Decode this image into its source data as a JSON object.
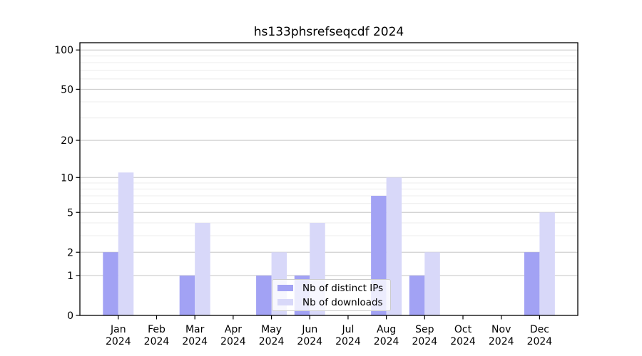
{
  "figure": {
    "title": "hs133phsrefseqcdf 2024"
  },
  "chart_data": {
    "type": "bar",
    "title": "hs133phsrefseqcdf 2024",
    "categories": [
      "Jan 2024",
      "Feb 2024",
      "Mar 2024",
      "Apr 2024",
      "May 2024",
      "Jun 2024",
      "Jul 2024",
      "Aug 2024",
      "Sep 2024",
      "Oct 2024",
      "Nov 2024",
      "Dec 2024"
    ],
    "month_labels": [
      "Jan",
      "Feb",
      "Mar",
      "Apr",
      "May",
      "Jun",
      "Jul",
      "Aug",
      "Sep",
      "Oct",
      "Nov",
      "Dec"
    ],
    "year_label": "2024",
    "series": [
      {
        "name": "Nb of distinct IPs",
        "color": "#a2a2f4",
        "values": [
          2,
          0,
          1,
          0,
          1,
          1,
          0,
          7,
          1,
          0,
          0,
          2
        ]
      },
      {
        "name": "Nb of downloads",
        "color": "#d8d8f9",
        "values": [
          11,
          0,
          4,
          0,
          2,
          4,
          0,
          10,
          2,
          0,
          0,
          5
        ]
      }
    ],
    "yscale": "log1p",
    "ylim": [
      0,
      113
    ],
    "y_tick_values": [
      0,
      1,
      2,
      5,
      10,
      20,
      50,
      100
    ],
    "y_tick_labels": [
      "0",
      "1",
      "2",
      "5",
      "10",
      "20",
      "50",
      "100"
    ],
    "y_minor_gridlines": [
      3,
      4,
      6,
      7,
      8,
      9,
      30,
      40,
      60,
      70,
      80,
      90
    ],
    "grid": true,
    "legend_position": "lower-center-inside",
    "xlabel": "",
    "ylabel": ""
  },
  "style_colors": {
    "background": "#ffffff",
    "axis": "#000000",
    "major_grid": "#c6c6c6",
    "minor_grid": "#ececec",
    "tick_label": "#000000"
  }
}
